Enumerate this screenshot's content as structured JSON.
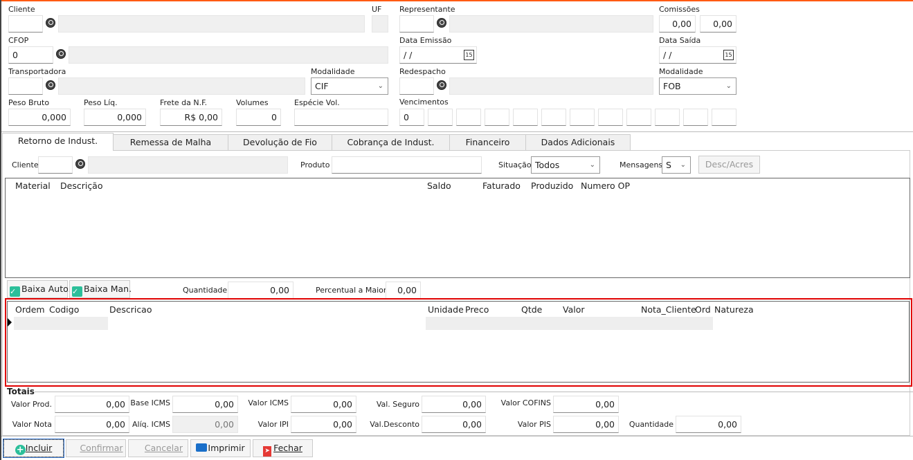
{
  "header": {
    "cliente": {
      "label": "Cliente",
      "code": "",
      "name": ""
    },
    "uf": {
      "label": "UF",
      "value": ""
    },
    "representante": {
      "label": "Representante",
      "code": "",
      "name": ""
    },
    "comissoes": {
      "label": "Comissões",
      "value1": "0,00",
      "value2": "0,00"
    },
    "cfop": {
      "label": "CFOP",
      "code": "0",
      "name": ""
    },
    "data_emissao": {
      "label": "Data Emissão",
      "value": " /  /"
    },
    "data_saida": {
      "label": "Data Saída",
      "value": " /  /"
    },
    "transportadora": {
      "label": "Transportadora",
      "code": "",
      "name": ""
    },
    "modalidade1": {
      "label": "Modalidade",
      "value": "CIF"
    },
    "redespacho": {
      "label": "Redespacho",
      "code": "",
      "name": ""
    },
    "modalidade2": {
      "label": "Modalidade",
      "value": "FOB"
    },
    "peso_bruto": {
      "label": "Peso Bruto",
      "value": "0,000"
    },
    "peso_liq": {
      "label": "Peso Líq.",
      "value": "0,000"
    },
    "frete": {
      "label": "Frete da N.F.",
      "value": "R$ 0,00"
    },
    "volumes": {
      "label": "Volumes",
      "value": "0"
    },
    "especie": {
      "label": "Espécie Vol.",
      "value": ""
    },
    "vencimentos": {
      "label": "Vencimentos",
      "values": [
        "0",
        "",
        "",
        "",
        "",
        "",
        "",
        "",
        "",
        "",
        "",
        ""
      ]
    }
  },
  "tabs": [
    "Retorno de Indust.",
    "Remessa de Malha",
    "Devolução de Fio",
    "Cobrança de Indust.",
    "Financeiro",
    "Dados Adicionais"
  ],
  "filter": {
    "cliente_label": "Cliente",
    "produto_label": "Produto",
    "situacao_label": "Situação",
    "situacao_value": "Todos",
    "mensagens_label": "Mensagens",
    "mensagens_value": "S",
    "desc_button": "Desc/Acres"
  },
  "grid1": {
    "columns": [
      "Material",
      "Descrição",
      "Saldo",
      "Faturado",
      "Produzido",
      "Numero OP"
    ]
  },
  "actions": {
    "baixa_auto": "Baixa Auto.",
    "baixa_man": "Baixa Man.",
    "quantidade_label": "Quantidade",
    "quantidade_value": "0,00",
    "percentual_label": "Percentual a Maior",
    "percentual_value": "0,00"
  },
  "grid2": {
    "columns": [
      "Ordem",
      "Codigo",
      "Descricao",
      "Unidade",
      "Preco",
      "Qtde",
      "Valor",
      "Nota_Cliente",
      "Ord",
      "Natureza"
    ]
  },
  "totais": {
    "title": "Totais",
    "valor_prod": {
      "label": "Valor Prod.",
      "value": "0,00"
    },
    "base_icms": {
      "label": "Base ICMS",
      "value": "0,00"
    },
    "valor_icms": {
      "label": "Valor ICMS",
      "value": "0,00"
    },
    "val_seguro": {
      "label": "Val. Seguro",
      "value": "0,00"
    },
    "valor_cofins": {
      "label": "Valor COFINS",
      "value": "0,00"
    },
    "valor_nota": {
      "label": "Valor Nota",
      "value": "0,00"
    },
    "aliq_icms": {
      "label": "Alíq. ICMS",
      "value": "0,00"
    },
    "valor_ipi": {
      "label": "Valor IPI",
      "value": "0,00"
    },
    "val_desconto": {
      "label": "Val.Desconto",
      "value": "0,00"
    },
    "valor_pis": {
      "label": "Valor PIS",
      "value": "0,00"
    },
    "quantidade": {
      "label": "Quantidade",
      "value": "0,00"
    }
  },
  "buttons": {
    "incluir": "Incluir",
    "confirmar": "Confirmar",
    "cancelar": "Cancelar",
    "imprimir": "Imprimir",
    "fechar": "Fechar"
  },
  "colors": {
    "accent": "#ff5a12",
    "highlight": "#e00000",
    "check": "#2cbf9a"
  }
}
